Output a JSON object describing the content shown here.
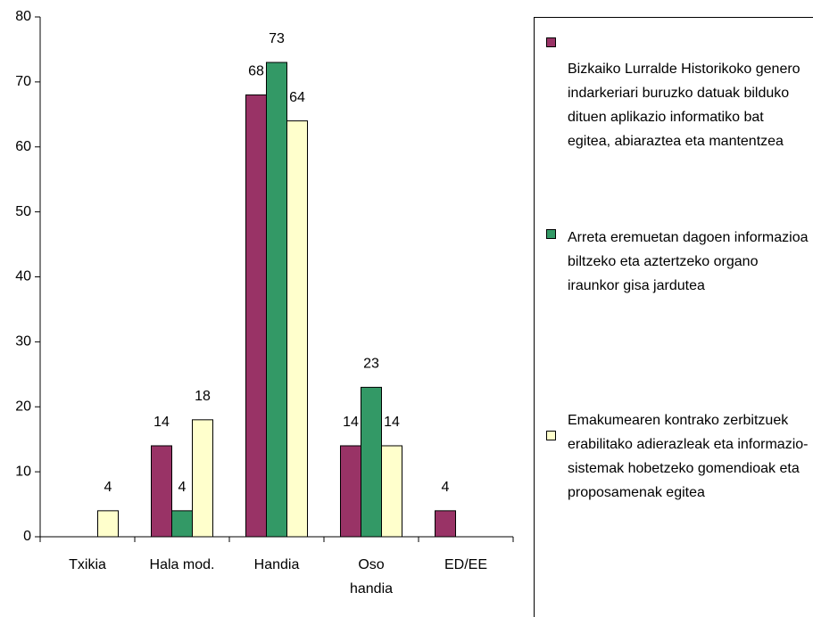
{
  "chart_data": {
    "type": "bar",
    "categories": [
      "Txikia",
      "Hala mod.",
      "Handia",
      "Oso handia",
      "ED/EE"
    ],
    "series": [
      {
        "name": "Bizkaiko Lurralde Historikoko genero indarkeriari buruzko datuak bilduko dituen aplikazio informatiko bat egitea, abiaraztea eta mantentzea",
        "color": "#993366",
        "values": [
          null,
          14,
          68,
          14,
          4
        ]
      },
      {
        "name": "Arreta eremuetan dagoen informazioa biltzeko eta aztertzeko organo iraunkor gisa jardutea",
        "color": "#339966",
        "values": [
          null,
          4,
          73,
          23,
          null
        ]
      },
      {
        "name": "Emakumearen kontrako zerbitzuek erabilitako adierazleak eta informazio-sistemak hobetzeko gomendioak eta proposamenak egitea",
        "color": "#FFFFCC",
        "values": [
          4,
          18,
          64,
          14,
          null
        ]
      }
    ],
    "ylim": [
      0,
      80
    ],
    "yticks": [
      0,
      10,
      20,
      30,
      40,
      50,
      60,
      70,
      80
    ],
    "legend": "right"
  }
}
